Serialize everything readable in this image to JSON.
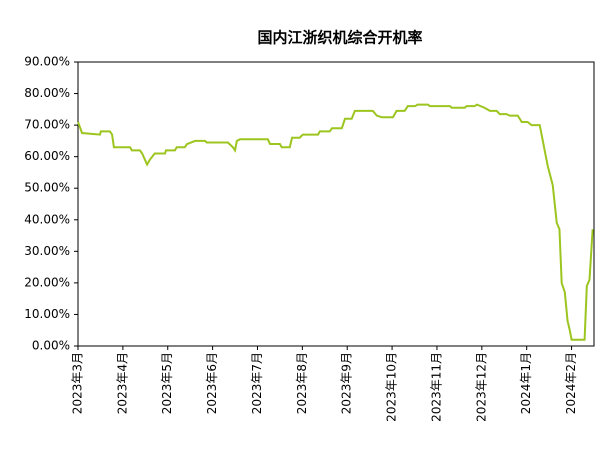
{
  "chart_data": {
    "type": "line",
    "title": "国内江浙织机综合开机率",
    "xlim": [
      0,
      11.5
    ],
    "xticks": [
      {
        "value": 0,
        "label": "2023年3月"
      },
      {
        "value": 1,
        "label": "2023年4月"
      },
      {
        "value": 2,
        "label": "2023年5月"
      },
      {
        "value": 3,
        "label": "2023年6月"
      },
      {
        "value": 4,
        "label": "2023年7月"
      },
      {
        "value": 5,
        "label": "2023年8月"
      },
      {
        "value": 6,
        "label": "2023年9月"
      },
      {
        "value": 7,
        "label": "2023年10月"
      },
      {
        "value": 8,
        "label": "2023年11月"
      },
      {
        "value": 9,
        "label": "2023年12月"
      },
      {
        "value": 10,
        "label": "2024年1月"
      },
      {
        "value": 11,
        "label": "2024年2月"
      }
    ],
    "ylim": [
      0,
      90
    ],
    "yticks": [
      {
        "value": 0,
        "label": "0.00%"
      },
      {
        "value": 10,
        "label": "10.00%"
      },
      {
        "value": 20,
        "label": "20.00%"
      },
      {
        "value": 30,
        "label": "30.00%"
      },
      {
        "value": 40,
        "label": "40.00%"
      },
      {
        "value": 50,
        "label": "50.00%"
      },
      {
        "value": 60,
        "label": "60.00%"
      },
      {
        "value": 70,
        "label": "70.00%"
      },
      {
        "value": 80,
        "label": "80.00%"
      },
      {
        "value": 90,
        "label": "90.00%"
      }
    ],
    "series": [
      {
        "color": "#9cc51f",
        "x": [
          0,
          0.09,
          0.49,
          0.51,
          0.71,
          0.76,
          0.8,
          1.16,
          1.2,
          1.38,
          1.43,
          1.54,
          1.6,
          1.71,
          1.94,
          1.96,
          2.16,
          2.2,
          2.38,
          2.43,
          2.61,
          2.83,
          2.87,
          3.34,
          3.45,
          3.5,
          3.54,
          3.61,
          4.23,
          4.28,
          4.5,
          4.54,
          4.72,
          4.77,
          4.94,
          5.01,
          5.35,
          5.39,
          5.61,
          5.66,
          5.88,
          5.95,
          6.1,
          6.17,
          6.57,
          6.66,
          6.77,
          7.02,
          7.1,
          7.28,
          7.35,
          7.51,
          7.57,
          7.8,
          7.84,
          8.29,
          8.33,
          8.62,
          8.66,
          8.84,
          8.89,
          9.06,
          9.18,
          9.33,
          9.4,
          9.55,
          9.62,
          9.8,
          9.89,
          10.02,
          10.11,
          10.29,
          10.36,
          10.4,
          10.47,
          10.58,
          10.67,
          10.73,
          10.78,
          10.85,
          10.91,
          10.96,
          11,
          11.29,
          11.34,
          11.4,
          11.47
        ],
        "values": [
          71,
          67.5,
          67,
          68,
          68,
          67,
          63,
          63,
          62,
          62,
          61,
          57.5,
          59,
          61,
          61,
          62,
          62,
          63,
          63,
          64,
          65,
          65,
          64.5,
          64.5,
          63,
          62,
          65,
          65.5,
          65.5,
          64,
          64,
          63,
          63,
          66,
          66,
          67,
          67,
          68,
          68,
          69,
          69,
          72,
          72,
          74.5,
          74.5,
          73,
          72.5,
          72.5,
          74.5,
          74.5,
          76,
          76,
          76.5,
          76.5,
          76,
          76,
          75.5,
          75.5,
          76,
          76,
          76.5,
          75.5,
          74.5,
          74.5,
          73.5,
          73.5,
          73,
          73,
          71,
          71,
          70,
          70,
          65,
          62,
          57,
          51,
          39,
          37,
          20,
          17,
          8,
          5,
          2,
          2,
          19,
          21,
          37
        ]
      }
    ]
  }
}
